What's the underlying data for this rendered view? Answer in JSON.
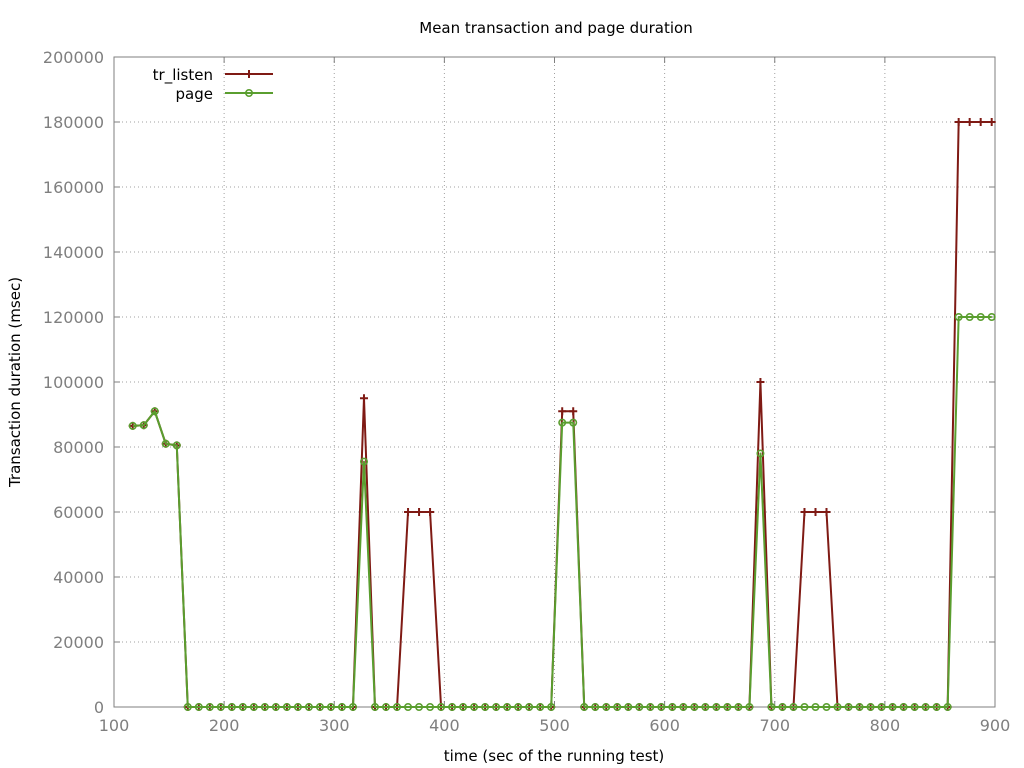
{
  "chart_data": {
    "type": "line",
    "title": "Mean transaction and page duration",
    "xlabel": "time (sec of the running test)",
    "ylabel": "Transaction duration (msec)",
    "xlim": [
      100,
      900
    ],
    "ylim": [
      0,
      200000
    ],
    "xticks": [
      100,
      200,
      300,
      400,
      500,
      600,
      700,
      800,
      900
    ],
    "yticks": [
      0,
      20000,
      40000,
      60000,
      80000,
      100000,
      120000,
      140000,
      160000,
      180000,
      200000
    ],
    "grid": true,
    "legend_position": "top-left",
    "series": [
      {
        "name": "tr_listen",
        "color": "#7f1a14",
        "marker": "plus",
        "x": [
          117,
          127,
          137,
          147,
          157,
          167,
          177,
          187,
          197,
          207,
          217,
          227,
          237,
          247,
          257,
          267,
          277,
          287,
          297,
          307,
          317,
          327,
          337,
          347,
          357,
          367,
          377,
          387,
          397,
          407,
          417,
          427,
          437,
          447,
          457,
          467,
          477,
          487,
          497,
          507,
          517,
          527,
          537,
          547,
          557,
          567,
          577,
          587,
          597,
          607,
          617,
          627,
          637,
          647,
          657,
          667,
          677,
          687,
          697,
          707,
          717,
          727,
          737,
          747,
          757,
          767,
          777,
          787,
          797,
          807,
          817,
          827,
          837,
          847,
          857,
          867,
          877,
          887,
          897
        ],
        "y": [
          86500,
          86700,
          91000,
          81000,
          80500,
          0,
          0,
          0,
          0,
          0,
          0,
          0,
          0,
          0,
          0,
          0,
          0,
          0,
          0,
          0,
          0,
          95000,
          0,
          0,
          0,
          60000,
          60000,
          60000,
          0,
          0,
          0,
          0,
          0,
          0,
          0,
          0,
          0,
          0,
          0,
          91000,
          91000,
          0,
          0,
          0,
          0,
          0,
          0,
          0,
          0,
          0,
          0,
          0,
          0,
          0,
          0,
          0,
          0,
          100000,
          0,
          0,
          0,
          60000,
          60000,
          60000,
          0,
          0,
          0,
          0,
          0,
          0,
          0,
          0,
          0,
          0,
          0,
          180000,
          180000,
          180000,
          180000
        ]
      },
      {
        "name": "page",
        "color": "#5a9e2f",
        "marker": "circle",
        "x": [
          117,
          127,
          137,
          147,
          157,
          167,
          177,
          187,
          197,
          207,
          217,
          227,
          237,
          247,
          257,
          267,
          277,
          287,
          297,
          307,
          317,
          327,
          337,
          347,
          357,
          367,
          377,
          387,
          397,
          407,
          417,
          427,
          437,
          447,
          457,
          467,
          477,
          487,
          497,
          507,
          517,
          527,
          537,
          547,
          557,
          567,
          577,
          587,
          597,
          607,
          617,
          627,
          637,
          647,
          657,
          667,
          677,
          687,
          697,
          707,
          717,
          727,
          737,
          747,
          757,
          767,
          777,
          787,
          797,
          807,
          817,
          827,
          837,
          847,
          857,
          867,
          877,
          887,
          897
        ],
        "y": [
          86500,
          86700,
          91000,
          81000,
          80500,
          0,
          0,
          0,
          0,
          0,
          0,
          0,
          0,
          0,
          0,
          0,
          0,
          0,
          0,
          0,
          0,
          75500,
          0,
          0,
          0,
          0,
          0,
          0,
          0,
          0,
          0,
          0,
          0,
          0,
          0,
          0,
          0,
          0,
          0,
          87500,
          87500,
          0,
          0,
          0,
          0,
          0,
          0,
          0,
          0,
          0,
          0,
          0,
          0,
          0,
          0,
          0,
          0,
          78000,
          0,
          0,
          0,
          0,
          0,
          0,
          0,
          0,
          0,
          0,
          0,
          0,
          0,
          0,
          0,
          0,
          0,
          120000,
          120000,
          120000,
          120000
        ]
      }
    ]
  }
}
